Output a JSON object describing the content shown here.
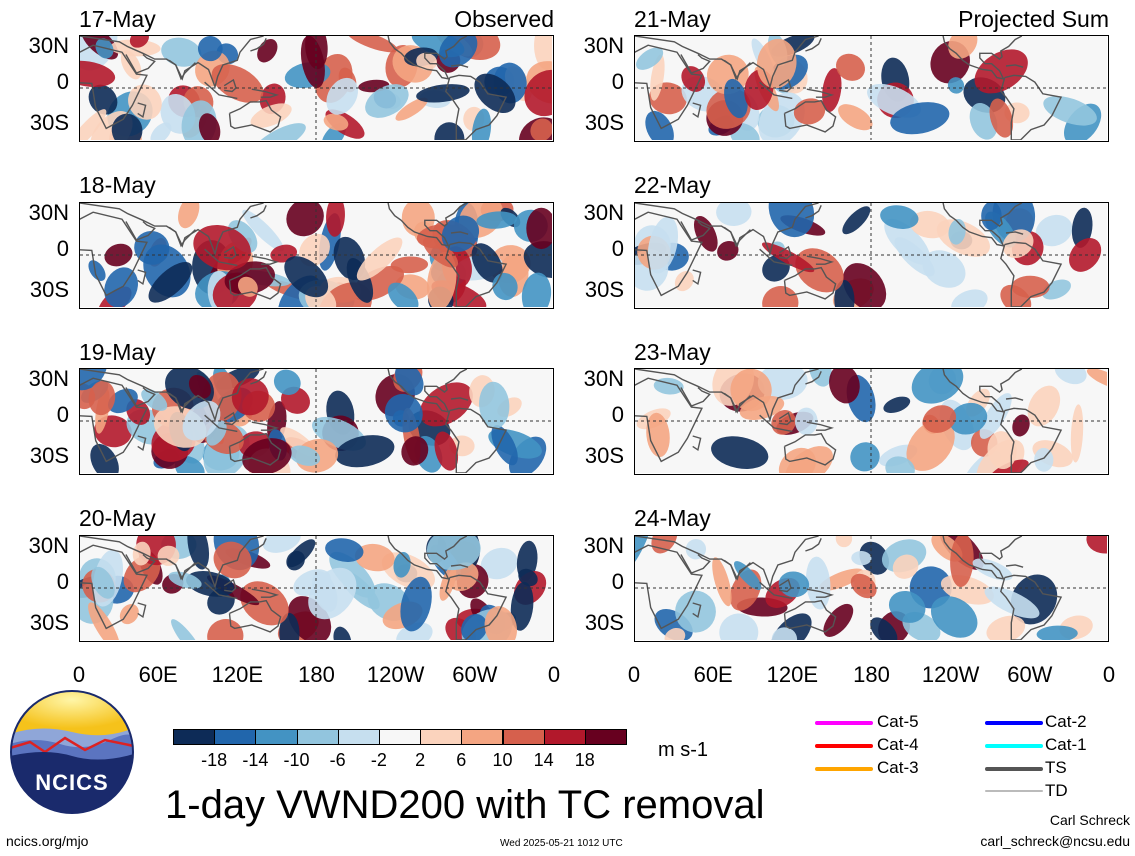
{
  "panels_observed": [
    {
      "date": "17-May",
      "label": "Observed"
    },
    {
      "date": "18-May",
      "label": ""
    },
    {
      "date": "19-May",
      "label": ""
    },
    {
      "date": "20-May",
      "label": ""
    }
  ],
  "panels_projected": [
    {
      "date": "21-May",
      "label": "Projected Sum"
    },
    {
      "date": "22-May",
      "label": ""
    },
    {
      "date": "23-May",
      "label": ""
    },
    {
      "date": "24-May",
      "label": ""
    }
  ],
  "lat_ticks": [
    "30N",
    "0",
    "30S"
  ],
  "lon_ticks": [
    "0",
    "60E",
    "120E",
    "180",
    "120W",
    "60W",
    "0"
  ],
  "colorbar": {
    "colors": [
      "#0d2b57",
      "#2166ac",
      "#4393c3",
      "#92c5de",
      "#c6dfef",
      "#f7f7f7",
      "#fbd3bd",
      "#f4a582",
      "#d6604d",
      "#b2182b",
      "#67001f"
    ],
    "labels": [
      "-18",
      "-14",
      "-10",
      "-6",
      "-2",
      "2",
      "6",
      "10",
      "14",
      "18"
    ],
    "units": "m s-1"
  },
  "legend": {
    "items": [
      {
        "label": "Cat-5",
        "color": "#ff00ff"
      },
      {
        "label": "Cat-4",
        "color": "#ff0000"
      },
      {
        "label": "Cat-3",
        "color": "#ffa500"
      },
      {
        "label": "Cat-2",
        "color": "#0000ff"
      },
      {
        "label": "Cat-1",
        "color": "#00ffff"
      },
      {
        "label": "TS",
        "color": "#555555"
      },
      {
        "label": "TD",
        "color": "#bbbbbb"
      }
    ]
  },
  "logo": {
    "text": "NCICS"
  },
  "title": "1-day VWND200 with TC removal",
  "footer": {
    "left": "ncics.org/mjo",
    "center": "Wed 2025-05-21 1012 UTC",
    "author": "Carl Schreck",
    "email": "carl_schreck@ncsu.edu"
  }
}
